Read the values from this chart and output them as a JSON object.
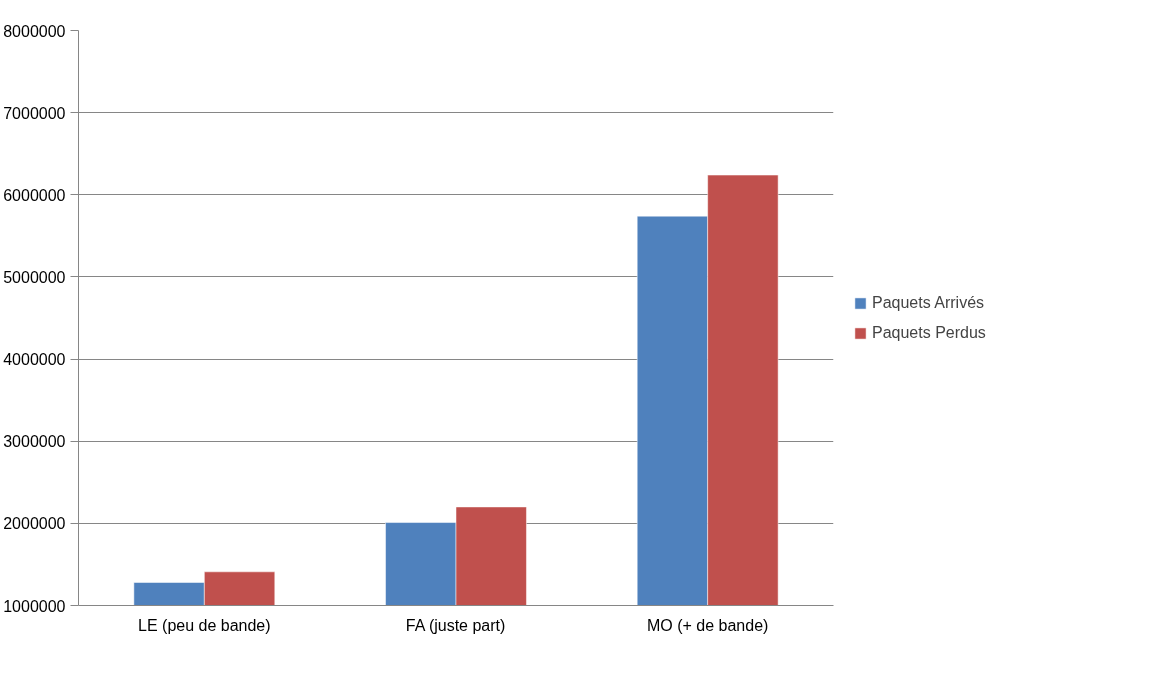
{
  "chart_data": {
    "type": "bar",
    "categories": [
      "LE (peu de bande)",
      "FA (juste part)",
      "MO (+ de bande)"
    ],
    "series": [
      {
        "name": "Paquets Arrivés",
        "color": "#4f81bd",
        "values": [
          1280000,
          2010000,
          5740000
        ]
      },
      {
        "name": "Paquets Perdus",
        "color": "#c0504d",
        "values": [
          1410000,
          2200000,
          6240000
        ]
      }
    ],
    "ylim": [
      1000000,
      8000000
    ],
    "yticks": [
      1000000,
      2000000,
      3000000,
      4000000,
      5000000,
      6000000,
      7000000,
      8000000
    ],
    "grid": "y",
    "legend": "right"
  }
}
